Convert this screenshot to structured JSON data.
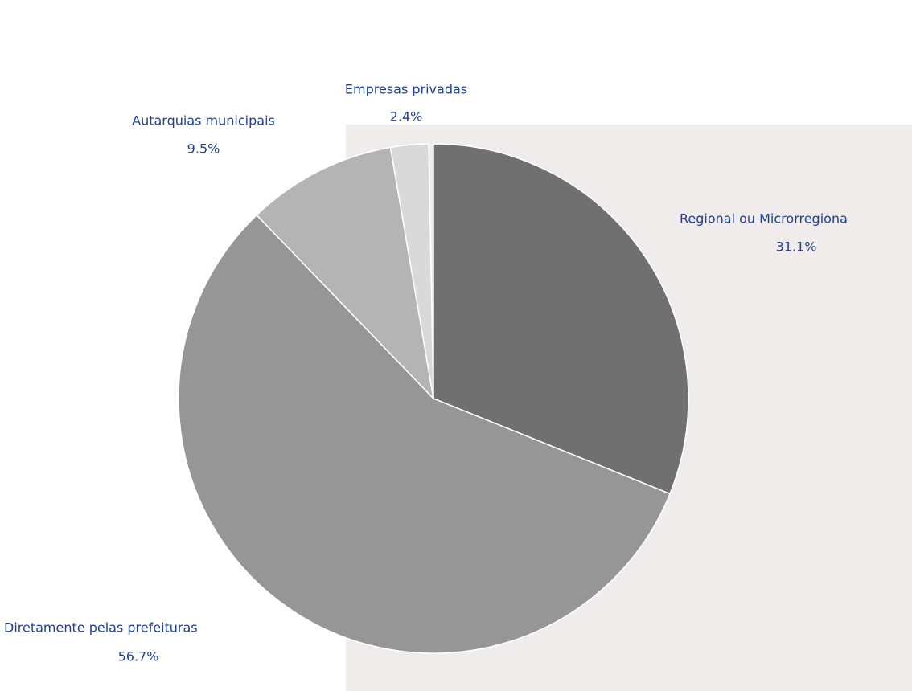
{
  "chart_data": {
    "type": "pie",
    "categories": [
      "Regional ou Microrregiona",
      "Diretamente pelas prefeituras",
      "Autarquias municipais",
      "Empresas privadas"
    ],
    "values": [
      31.1,
      56.7,
      9.5,
      2.4
    ],
    "value_labels": [
      "31.1%",
      "56.7%",
      "9.5%",
      "2.4%"
    ],
    "colors": [
      "#707070",
      "#969696",
      "#b4b4b4",
      "#d9d9d9"
    ]
  }
}
